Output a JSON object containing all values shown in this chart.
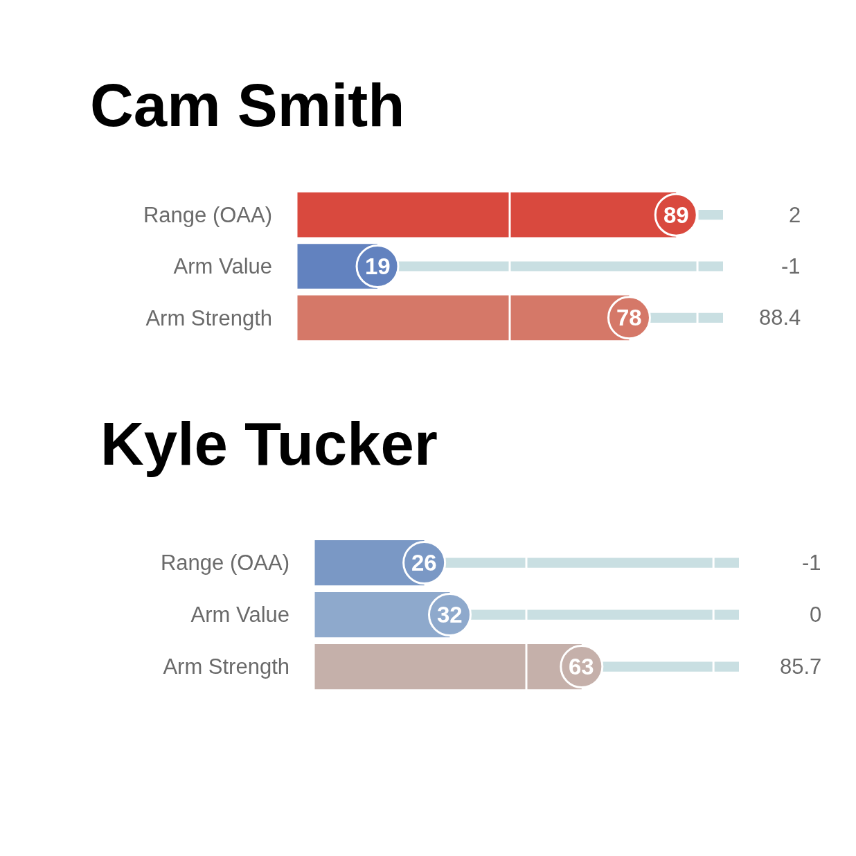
{
  "chart_data": [
    {
      "type": "bar",
      "orientation": "horizontal",
      "stacked": true,
      "title": "Cam Smith",
      "categories": [
        "Range (OAA)",
        "Arm Value",
        "Arm Strength"
      ],
      "series": [
        {
          "colors": [
            "#d9493e",
            "#6282bf",
            "#d57868"
          ],
          "values": [
            89,
            19,
            78
          ],
          "value_labels": [
            "89",
            "19",
            "78"
          ]
        },
        {
          "color": "#c9dfe2",
          "values": [
            11,
            81,
            22
          ]
        }
      ],
      "xlim": [
        0,
        100
      ],
      "xticks": [
        {
          "value": 0,
          "label": null
        },
        {
          "value": 50,
          "label": null
        },
        {
          "value": 94,
          "label": null
        }
      ],
      "grid": "x",
      "tick_labels": "y",
      "annotations": [
        "2",
        "-1",
        "88.4"
      ]
    },
    {
      "type": "bar",
      "orientation": "horizontal",
      "stacked": true,
      "title": "Kyle Tucker",
      "categories": [
        "Range (OAA)",
        "Arm Value",
        "Arm Strength"
      ],
      "series": [
        {
          "colors": [
            "#7a98c5",
            "#8ea9cc",
            "#c5b0aa"
          ],
          "values": [
            26,
            32,
            63
          ],
          "value_labels": [
            "26",
            "32",
            "63"
          ]
        },
        {
          "color": "#c9dfe2",
          "values": [
            74,
            68,
            37
          ]
        }
      ],
      "xlim": [
        0,
        100
      ],
      "xticks": [
        {
          "value": 0,
          "label": null
        },
        {
          "value": 50,
          "label": null
        },
        {
          "value": 94,
          "label": null
        }
      ],
      "grid": "x",
      "tick_labels": "y",
      "annotations": [
        "-1",
        "0",
        "85.7"
      ]
    }
  ]
}
